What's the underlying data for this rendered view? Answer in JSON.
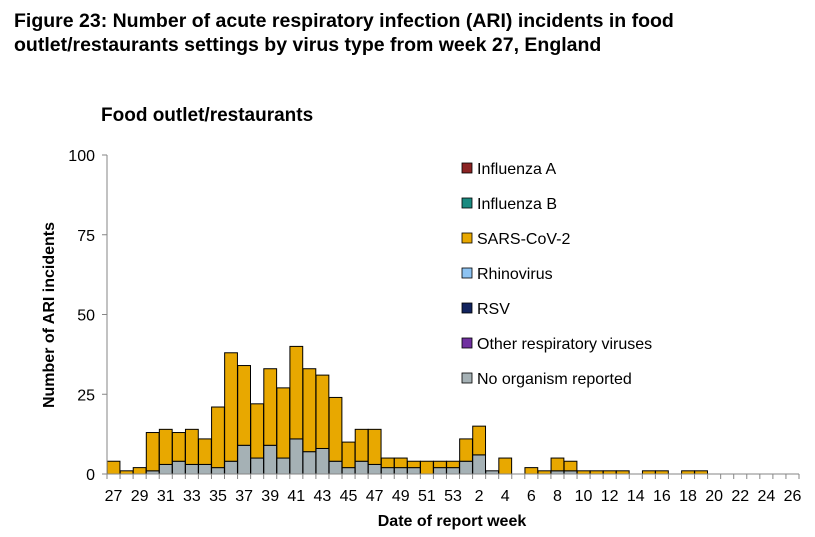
{
  "figure": {
    "title_line1": "Figure 23: Number of acute respiratory infection (ARI) incidents in food",
    "title_line2": "outlet/restaurants settings by virus type from week 27, England"
  },
  "chart_data": {
    "type": "bar",
    "stacked": true,
    "title": "Food outlet/restaurants",
    "xlabel": "Date of report week",
    "ylabel": "Number of ARI incidents",
    "ylim": [
      0,
      100
    ],
    "yticks": [
      0,
      25,
      50,
      75,
      100
    ],
    "grid": false,
    "legend_position": "right",
    "categories": [
      27,
      28,
      29,
      30,
      31,
      32,
      33,
      34,
      35,
      36,
      37,
      38,
      39,
      40,
      41,
      42,
      43,
      44,
      45,
      46,
      47,
      48,
      49,
      50,
      51,
      52,
      53,
      1,
      2,
      3,
      4,
      5,
      6,
      7,
      8,
      9,
      10,
      11,
      12,
      13,
      14,
      15,
      16,
      17,
      18,
      19,
      20,
      21,
      22,
      23,
      24,
      25,
      26
    ],
    "xtick_labels": [
      "27",
      "29",
      "31",
      "33",
      "35",
      "37",
      "39",
      "41",
      "43",
      "45",
      "47",
      "49",
      "51",
      "53",
      "2",
      "4",
      "6",
      "8",
      "10",
      "12",
      "14",
      "16",
      "18",
      "20",
      "22",
      "24",
      "26"
    ],
    "series": [
      {
        "name": "Influenza A",
        "color": "#8B2323",
        "values": [
          0,
          0,
          0,
          0,
          0,
          0,
          0,
          0,
          0,
          0,
          0,
          0,
          0,
          0,
          0,
          0,
          0,
          0,
          0,
          0,
          0,
          0,
          0,
          0,
          0,
          0,
          0,
          0,
          0,
          0,
          0,
          0,
          0,
          0,
          0,
          0,
          0,
          0,
          0,
          0,
          0,
          0,
          0,
          0,
          0,
          0,
          0,
          0,
          0,
          0,
          0,
          0,
          0
        ]
      },
      {
        "name": "Influenza B",
        "color": "#1A8A80",
        "values": [
          0,
          0,
          0,
          0,
          0,
          0,
          0,
          0,
          0,
          0,
          0,
          0,
          0,
          0,
          0,
          0,
          0,
          0,
          0,
          0,
          0,
          0,
          0,
          0,
          0,
          0,
          0,
          0,
          0,
          0,
          0,
          0,
          0,
          0,
          0,
          0,
          0,
          0,
          0,
          0,
          0,
          0,
          0,
          0,
          0,
          0,
          0,
          0,
          0,
          0,
          0,
          0,
          0
        ]
      },
      {
        "name": "SARS-CoV-2",
        "color": "#E8A800",
        "values": [
          4,
          1,
          2,
          12,
          11,
          9,
          11,
          8,
          19,
          34,
          25,
          17,
          24,
          22,
          29,
          26,
          23,
          20,
          8,
          10,
          11,
          3,
          3,
          2,
          4,
          2,
          2,
          7,
          9,
          0,
          5,
          0,
          2,
          1,
          4,
          3,
          1,
          1,
          1,
          1,
          0,
          1,
          1,
          0,
          1,
          1,
          0,
          0,
          0,
          0,
          0,
          0,
          0
        ]
      },
      {
        "name": "Rhinovirus",
        "color": "#8DC3F2",
        "values": [
          0,
          0,
          0,
          0,
          0,
          0,
          0,
          0,
          0,
          0,
          0,
          0,
          0,
          0,
          0,
          0,
          0,
          0,
          0,
          0,
          0,
          0,
          0,
          0,
          0,
          0,
          0,
          0,
          0,
          0,
          0,
          0,
          0,
          0,
          0,
          0,
          0,
          0,
          0,
          0,
          0,
          0,
          0,
          0,
          0,
          0,
          0,
          0,
          0,
          0,
          0,
          0,
          0
        ]
      },
      {
        "name": "RSV",
        "color": "#12235E",
        "values": [
          0,
          0,
          0,
          0,
          0,
          0,
          0,
          0,
          0,
          0,
          0,
          0,
          0,
          0,
          0,
          0,
          0,
          0,
          0,
          0,
          0,
          0,
          0,
          0,
          0,
          0,
          0,
          0,
          0,
          0,
          0,
          0,
          0,
          0,
          0,
          0,
          0,
          0,
          0,
          0,
          0,
          0,
          0,
          0,
          0,
          0,
          0,
          0,
          0,
          0,
          0,
          0,
          0
        ]
      },
      {
        "name": "Other respiratory viruses",
        "color": "#7030A0",
        "values": [
          0,
          0,
          0,
          0,
          0,
          0,
          0,
          0,
          0,
          0,
          0,
          0,
          0,
          0,
          0,
          0,
          0,
          0,
          0,
          0,
          0,
          0,
          0,
          0,
          0,
          0,
          0,
          0,
          0,
          0,
          0,
          0,
          0,
          0,
          0,
          0,
          0,
          0,
          0,
          0,
          0,
          0,
          0,
          0,
          0,
          0,
          0,
          0,
          0,
          0,
          0,
          0,
          0
        ]
      },
      {
        "name": "No organism reported",
        "color": "#A5B1B5",
        "values": [
          0,
          0,
          0,
          1,
          3,
          4,
          3,
          3,
          2,
          4,
          9,
          5,
          9,
          5,
          11,
          7,
          8,
          4,
          2,
          4,
          3,
          2,
          2,
          2,
          0,
          2,
          2,
          4,
          6,
          1,
          0,
          0,
          0,
          0,
          1,
          1,
          0,
          0,
          0,
          0,
          0,
          0,
          0,
          0,
          0,
          0,
          0,
          0,
          0,
          0,
          0,
          0,
          0
        ]
      }
    ]
  }
}
